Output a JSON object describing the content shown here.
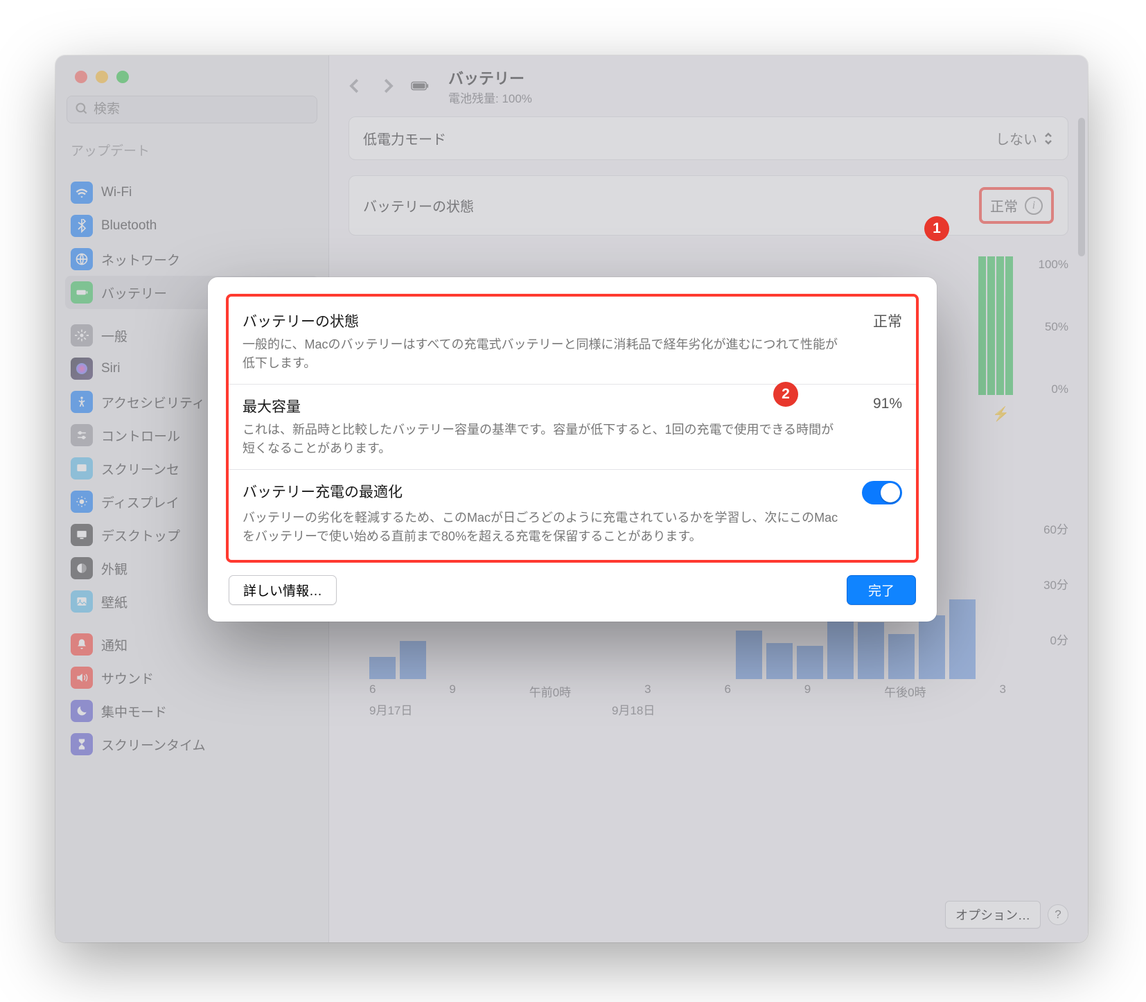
{
  "traffic_colors": [
    "#ff5f57",
    "#febc2e",
    "#28c840"
  ],
  "search_placeholder": "検索",
  "sidebar": {
    "truncated_top": "アップデート",
    "items": [
      {
        "label": "Wi-Fi",
        "bg": "#0a7aff"
      },
      {
        "label": "Bluetooth",
        "bg": "#0a7aff"
      },
      {
        "label": "ネットワーク",
        "bg": "#0a7aff"
      },
      {
        "label": "バッテリー",
        "bg": "#34c759",
        "selected": true
      }
    ],
    "items2": [
      {
        "label": "一般",
        "bg": "#9a9aa0"
      },
      {
        "label": "Siri",
        "bg": "linear-gradient(135deg,#ec4899,#8b5cf6,#06b6d4)"
      },
      {
        "label": "アクセシビリティ",
        "bg": "#0a7aff"
      },
      {
        "label": "コントロール",
        "bg": "#9a9aa0"
      },
      {
        "label": "スクリーンセ",
        "bg": "#55bef0"
      },
      {
        "label": "ディスプレイ",
        "bg": "#0a7aff"
      },
      {
        "label": "デスクトップ",
        "bg": "#333"
      },
      {
        "label": "外観",
        "bg": "#333"
      },
      {
        "label": "壁紙",
        "bg": "#55bef0"
      }
    ],
    "items3": [
      {
        "label": "通知",
        "bg": "#ff3b30"
      },
      {
        "label": "サウンド",
        "bg": "#ff3b30"
      },
      {
        "label": "集中モード",
        "bg": "#5856d6"
      },
      {
        "label": "スクリーンタイム",
        "bg": "#5856d6"
      }
    ]
  },
  "header": {
    "title": "バッテリー",
    "subtitle": "電池残量: 100%"
  },
  "rows": {
    "low_power": {
      "label": "低電力モード",
      "value": "しない"
    },
    "health": {
      "label": "バッテリーの状態",
      "value": "正常"
    }
  },
  "chart": {
    "y_labels_pct": [
      "100%",
      "50%",
      "0%"
    ],
    "y_labels_min": [
      "60分",
      "30分",
      "0分"
    ],
    "x_ticks": [
      "6",
      "9",
      "午前0時",
      "3",
      "6",
      "9",
      "午後0時",
      "3"
    ],
    "x_dates": [
      "9月17日",
      "9月18日"
    ],
    "bars": [
      32,
      55,
      0,
      0,
      0,
      0,
      0,
      0,
      0,
      0,
      0,
      0,
      70,
      52,
      48,
      84,
      82,
      65,
      92,
      115,
      0
    ],
    "bar_color": "#6a9be8",
    "green_color": "#34c759"
  },
  "options_button": "オプション…",
  "modal": {
    "s1_title": "バッテリーの状態",
    "s1_value": "正常",
    "s1_desc": "一般的に、Macのバッテリーはすべての充電式バッテリーと同様に消耗品で経年劣化が進むにつれて性能が低下します。",
    "s2_title": "最大容量",
    "s2_value": "91%",
    "s2_desc": "これは、新品時と比較したバッテリー容量の基準です。容量が低下すると、1回の充電で使用できる時間が短くなることがあります。",
    "s3_title": "バッテリー充電の最適化",
    "s3_desc": "バッテリーの劣化を軽減するため、このMacが日ごろどのように充電されているかを学習し、次にこのMacをバッテリーで使い始める直前まで80%を超える充電を保留することがあります。",
    "more_info": "詳しい情報…",
    "done": "完了"
  },
  "annotations": {
    "a1": "1",
    "a2": "2"
  }
}
